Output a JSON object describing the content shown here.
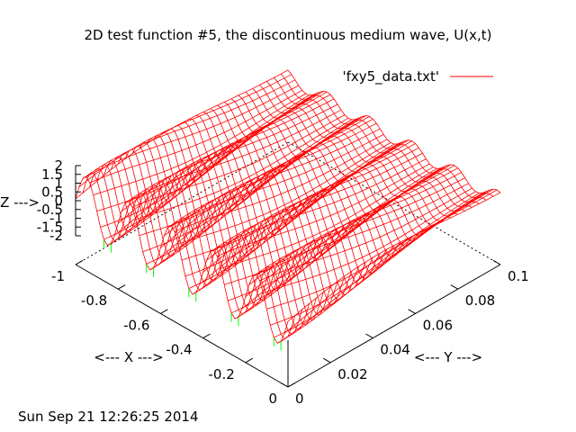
{
  "chart_data": {
    "type": "surface",
    "title": "2D test function #5, the discontinuous medium wave, U(x,t)",
    "xlabel": "<--- X --->",
    "ylabel": "<--- Y --->",
    "zlabel": "<--- Z --->",
    "timestamp": "Sun Sep 21 12:26:25 2014",
    "xlim": [
      -1,
      0
    ],
    "ylim": [
      0,
      0.1
    ],
    "zlim": [
      -2,
      2
    ],
    "x_ticks": [
      "-1",
      "-0.8",
      "-0.6",
      "-0.4",
      "-0.2",
      "0"
    ],
    "y_ticks": [
      "0",
      "0.02",
      "0.04",
      "0.06",
      "0.08",
      "0.1"
    ],
    "z_ticks": [
      "2",
      "1.5",
      "1",
      "0.5",
      "0",
      "-0.5",
      "-1",
      "-1.5",
      "-2"
    ],
    "legend": {
      "label": "'fxy5_data.txt'",
      "position": "top-right",
      "color": "#ff0000"
    },
    "series": [
      {
        "name": "'fxy5_data.txt'",
        "color": "#ff0000",
        "underside_color": "#00ff00"
      }
    ],
    "grid": false
  }
}
